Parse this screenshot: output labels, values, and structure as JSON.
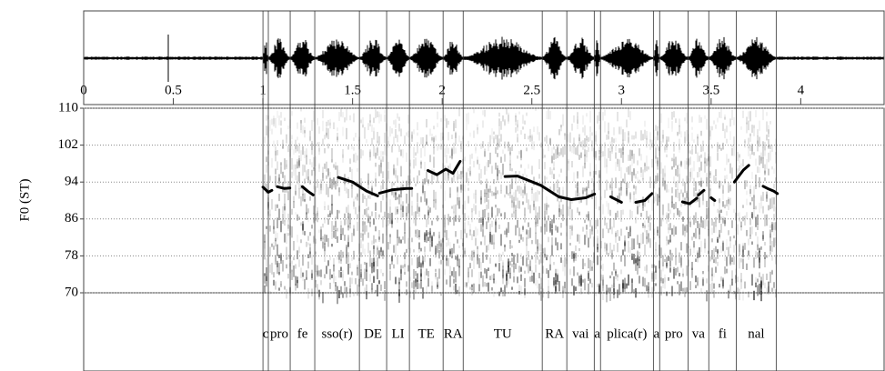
{
  "chart_data": {
    "type": "line",
    "y_label": "F0 (ST)",
    "xlim": [
      0,
      4.47
    ],
    "xticks": [
      0,
      0.5,
      1,
      1.5,
      2,
      2.5,
      3,
      3.5,
      4
    ],
    "ylim": [
      70,
      110
    ],
    "yticks": [
      70,
      78,
      86,
      94,
      102,
      110
    ],
    "grid": true,
    "color": "#000000",
    "x": [
      1.0,
      1.03,
      1.05,
      null,
      1.08,
      1.12,
      1.15,
      null,
      1.22,
      1.25,
      1.28,
      null,
      1.42,
      1.5,
      1.58,
      1.64,
      null,
      1.65,
      1.72,
      1.8,
      1.83,
      null,
      1.92,
      1.97,
      2.02,
      2.06,
      2.1,
      null,
      2.35,
      2.42,
      2.55,
      2.65,
      2.72,
      2.8,
      2.85,
      null,
      2.94,
      3.0,
      null,
      3.08,
      3.13,
      3.17,
      null,
      3.34,
      3.38,
      3.42,
      null,
      3.43,
      3.46,
      null,
      3.5,
      3.52,
      null,
      3.63,
      3.68,
      3.71,
      null,
      3.79,
      3.82,
      3.85,
      3.87
    ],
    "values": [
      92.9,
      91.8,
      92.2,
      null,
      93.0,
      92.6,
      92.7,
      null,
      93.0,
      92.0,
      91.2,
      null,
      95.0,
      94.0,
      92.0,
      91.0,
      null,
      91.6,
      92.3,
      92.6,
      92.6,
      null,
      96.5,
      95.6,
      96.8,
      95.9,
      98.5,
      null,
      95.2,
      95.3,
      93.3,
      90.8,
      90.2,
      90.6,
      91.4,
      null,
      90.8,
      89.6,
      null,
      89.6,
      90.0,
      91.5,
      null,
      89.7,
      89.3,
      90.5,
      null,
      91.2,
      92.2,
      null,
      90.6,
      90.0,
      null,
      94.0,
      96.6,
      97.6,
      null,
      93.1,
      92.5,
      92.0,
      91.5
    ],
    "intervals": [
      {
        "label": "c",
        "start": 1.0,
        "end": 1.03
      },
      {
        "label": "pro",
        "start": 1.03,
        "end": 1.152
      },
      {
        "label": "fe",
        "start": 1.152,
        "end": 1.289
      },
      {
        "label": "sso(r)",
        "start": 1.289,
        "end": 1.538
      },
      {
        "label": "DE",
        "start": 1.538,
        "end": 1.69
      },
      {
        "label": "LI",
        "start": 1.69,
        "end": 1.817
      },
      {
        "label": "TE",
        "start": 1.817,
        "end": 2.005
      },
      {
        "label": "RA",
        "start": 2.005,
        "end": 2.117
      },
      {
        "label": "TU",
        "start": 2.117,
        "end": 2.558
      },
      {
        "label": "RA",
        "start": 2.558,
        "end": 2.695
      },
      {
        "label": "vai",
        "start": 2.695,
        "end": 2.848
      },
      {
        "label": "a",
        "start": 2.848,
        "end": 2.883
      },
      {
        "label": "plica(r)",
        "start": 2.883,
        "end": 3.178
      },
      {
        "label": "a",
        "start": 3.178,
        "end": 3.213
      },
      {
        "label": "pro",
        "start": 3.213,
        "end": 3.371
      },
      {
        "label": "va",
        "start": 3.371,
        "end": 3.487
      },
      {
        "label": "fi",
        "start": 3.487,
        "end": 3.64
      },
      {
        "label": "nal",
        "start": 3.64,
        "end": 3.863
      }
    ]
  }
}
